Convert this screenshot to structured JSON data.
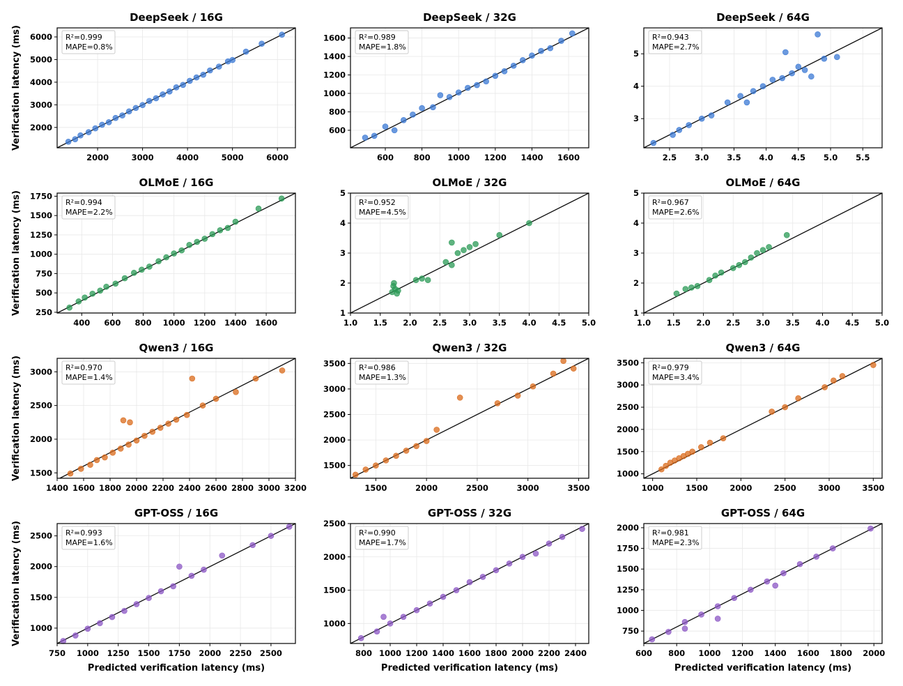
{
  "figure": {
    "xlabel": "Predicted verification latency (ms)",
    "ylabel": "Verification latency (ms)"
  },
  "colors": {
    "DeepSeek": "#3a78d4",
    "OLMoE": "#2a9a55",
    "Qwen3": "#d9691a",
    "GPT-OSS": "#8b55c4",
    "identity_line": "#111111"
  },
  "chart_data": [
    {
      "type": "scatter",
      "model": "DeepSeek",
      "title": "DeepSeek / 16G",
      "r2": "R²=0.999",
      "mape": "MAPE=0.8%",
      "xlim": [
        1100,
        6400
      ],
      "ylim": [
        1100,
        6400
      ],
      "xticks": [
        2000,
        3000,
        4000,
        5000,
        6000
      ],
      "yticks": [
        2000,
        3000,
        4000,
        5000,
        6000
      ],
      "points": [
        [
          1350,
          1370
        ],
        [
          1500,
          1480
        ],
        [
          1620,
          1650
        ],
        [
          1800,
          1790
        ],
        [
          1950,
          1960
        ],
        [
          2100,
          2120
        ],
        [
          2250,
          2230
        ],
        [
          2400,
          2420
        ],
        [
          2550,
          2530
        ],
        [
          2700,
          2710
        ],
        [
          2850,
          2860
        ],
        [
          3000,
          2990
        ],
        [
          3150,
          3170
        ],
        [
          3300,
          3290
        ],
        [
          3450,
          3460
        ],
        [
          3600,
          3590
        ],
        [
          3750,
          3770
        ],
        [
          3900,
          3880
        ],
        [
          4050,
          4060
        ],
        [
          4200,
          4210
        ],
        [
          4350,
          4330
        ],
        [
          4500,
          4520
        ],
        [
          4700,
          4690
        ],
        [
          4900,
          4920
        ],
        [
          5000,
          4980
        ],
        [
          5300,
          5350
        ],
        [
          5650,
          5700
        ],
        [
          6100,
          6100
        ]
      ]
    },
    {
      "type": "scatter",
      "model": "DeepSeek",
      "title": "DeepSeek / 32G",
      "r2": "R²=0.989",
      "mape": "MAPE=1.8%",
      "xlim": [
        410,
        1710
      ],
      "ylim": [
        410,
        1710
      ],
      "xticks": [
        600,
        800,
        1000,
        1200,
        1400,
        1600
      ],
      "yticks": [
        600,
        800,
        1000,
        1200,
        1400,
        1600
      ],
      "points": [
        [
          490,
          520
        ],
        [
          540,
          540
        ],
        [
          600,
          640
        ],
        [
          650,
          600
        ],
        [
          700,
          710
        ],
        [
          750,
          770
        ],
        [
          800,
          840
        ],
        [
          860,
          850
        ],
        [
          900,
          980
        ],
        [
          950,
          960
        ],
        [
          1000,
          1010
        ],
        [
          1050,
          1060
        ],
        [
          1100,
          1090
        ],
        [
          1150,
          1130
        ],
        [
          1200,
          1190
        ],
        [
          1250,
          1240
        ],
        [
          1300,
          1300
        ],
        [
          1350,
          1360
        ],
        [
          1400,
          1410
        ],
        [
          1450,
          1460
        ],
        [
          1500,
          1490
        ],
        [
          1560,
          1570
        ],
        [
          1620,
          1650
        ]
      ]
    },
    {
      "type": "scatter",
      "model": "DeepSeek",
      "title": "DeepSeek / 64G",
      "r2": "R²=0.943",
      "mape": "MAPE=2.7%",
      "xlim": [
        2.1,
        5.8
      ],
      "ylim": [
        2.1,
        5.8
      ],
      "xticks": [
        2.5,
        3.0,
        3.5,
        4.0,
        4.5,
        5.0,
        5.5
      ],
      "yticks": [
        3,
        4,
        5
      ],
      "points": [
        [
          2.25,
          2.25
        ],
        [
          2.55,
          2.5
        ],
        [
          2.65,
          2.65
        ],
        [
          2.8,
          2.8
        ],
        [
          3.0,
          3.0
        ],
        [
          3.15,
          3.1
        ],
        [
          3.4,
          3.5
        ],
        [
          3.6,
          3.7
        ],
        [
          3.8,
          3.85
        ],
        [
          3.95,
          4.0
        ],
        [
          4.1,
          4.2
        ],
        [
          4.25,
          4.25
        ],
        [
          4.4,
          4.4
        ],
        [
          4.5,
          4.6
        ],
        [
          4.6,
          4.5
        ],
        [
          4.7,
          4.3
        ],
        [
          4.8,
          5.6
        ],
        [
          4.9,
          4.85
        ],
        [
          5.1,
          4.9
        ],
        [
          4.3,
          5.05
        ],
        [
          3.7,
          3.5
        ]
      ]
    },
    {
      "type": "scatter",
      "model": "OLMoE",
      "title": "OLMoE / 16G",
      "r2": "R²=0.994",
      "mape": "MAPE=2.2%",
      "xlim": [
        240,
        1790
      ],
      "ylim": [
        240,
        1790
      ],
      "xticks": [
        400,
        600,
        800,
        1000,
        1200,
        1400,
        1600
      ],
      "yticks": [
        250,
        500,
        750,
        1000,
        1250,
        1500,
        1750
      ],
      "points": [
        [
          320,
          310
        ],
        [
          380,
          390
        ],
        [
          420,
          440
        ],
        [
          470,
          490
        ],
        [
          520,
          530
        ],
        [
          560,
          580
        ],
        [
          620,
          620
        ],
        [
          680,
          690
        ],
        [
          740,
          760
        ],
        [
          790,
          800
        ],
        [
          840,
          840
        ],
        [
          900,
          910
        ],
        [
          950,
          960
        ],
        [
          1000,
          1010
        ],
        [
          1050,
          1050
        ],
        [
          1100,
          1120
        ],
        [
          1150,
          1160
        ],
        [
          1200,
          1200
        ],
        [
          1250,
          1260
        ],
        [
          1300,
          1310
        ],
        [
          1350,
          1340
        ],
        [
          1400,
          1420
        ],
        [
          1550,
          1590
        ],
        [
          1700,
          1720
        ]
      ]
    },
    {
      "type": "scatter",
      "model": "OLMoE",
      "title": "OLMoE / 32G",
      "r2": "R²=0.952",
      "mape": "MAPE=4.5%",
      "xlim": [
        1.0,
        5.0
      ],
      "ylim": [
        1.0,
        5.0
      ],
      "xticks": [
        1.0,
        1.5,
        2.0,
        2.5,
        3.0,
        3.5,
        4.0,
        4.5,
        5.0
      ],
      "yticks": [
        1,
        2,
        3,
        4,
        5
      ],
      "points": [
        [
          1.7,
          1.7
        ],
        [
          1.72,
          1.9
        ],
        [
          1.75,
          1.8
        ],
        [
          1.78,
          1.65
        ],
        [
          1.73,
          2.0
        ],
        [
          1.8,
          1.75
        ],
        [
          2.1,
          2.1
        ],
        [
          2.2,
          2.15
        ],
        [
          2.3,
          2.1
        ],
        [
          2.6,
          2.7
        ],
        [
          2.7,
          2.6
        ],
        [
          2.8,
          3.0
        ],
        [
          2.9,
          3.1
        ],
        [
          3.0,
          3.2
        ],
        [
          3.1,
          3.3
        ],
        [
          2.7,
          3.35
        ],
        [
          3.5,
          3.6
        ],
        [
          4.0,
          4.0
        ]
      ]
    },
    {
      "type": "scatter",
      "model": "OLMoE",
      "title": "OLMoE / 64G",
      "r2": "R²=0.967",
      "mape": "MAPE=2.6%",
      "xlim": [
        1.0,
        5.0
      ],
      "ylim": [
        1.0,
        5.0
      ],
      "xticks": [
        1.0,
        1.5,
        2.0,
        2.5,
        3.0,
        3.5,
        4.0,
        4.5,
        5.0
      ],
      "yticks": [
        1,
        2,
        3,
        4,
        5
      ],
      "points": [
        [
          1.55,
          1.65
        ],
        [
          1.7,
          1.8
        ],
        [
          1.8,
          1.85
        ],
        [
          1.9,
          1.9
        ],
        [
          2.1,
          2.1
        ],
        [
          2.2,
          2.25
        ],
        [
          2.3,
          2.35
        ],
        [
          2.5,
          2.5
        ],
        [
          2.6,
          2.6
        ],
        [
          2.7,
          2.7
        ],
        [
          2.8,
          2.85
        ],
        [
          2.9,
          3.0
        ],
        [
          3.0,
          3.1
        ],
        [
          3.1,
          3.2
        ],
        [
          3.4,
          3.6
        ]
      ]
    },
    {
      "type": "scatter",
      "model": "Qwen3",
      "title": "Qwen3 / 16G",
      "r2": "R²=0.970",
      "mape": "MAPE=1.4%",
      "xlim": [
        1400,
        3200
      ],
      "ylim": [
        1420,
        3200
      ],
      "xticks": [
        1400,
        1600,
        1800,
        2000,
        2200,
        2400,
        2600,
        2800,
        3000,
        3200
      ],
      "yticks": [
        1500,
        2000,
        2500,
        3000
      ],
      "points": [
        [
          1500,
          1490
        ],
        [
          1580,
          1560
        ],
        [
          1650,
          1620
        ],
        [
          1700,
          1690
        ],
        [
          1760,
          1730
        ],
        [
          1820,
          1800
        ],
        [
          1880,
          1860
        ],
        [
          1940,
          1920
        ],
        [
          2000,
          1980
        ],
        [
          2060,
          2050
        ],
        [
          2120,
          2110
        ],
        [
          2180,
          2170
        ],
        [
          2240,
          2230
        ],
        [
          2300,
          2290
        ],
        [
          2380,
          2360
        ],
        [
          2420,
          2900
        ],
        [
          2500,
          2500
        ],
        [
          2600,
          2600
        ],
        [
          2750,
          2700
        ],
        [
          2900,
          2900
        ],
        [
          3100,
          3020
        ],
        [
          1900,
          2280
        ],
        [
          1950,
          2250
        ]
      ]
    },
    {
      "type": "scatter",
      "model": "Qwen3",
      "title": "Qwen3 / 32G",
      "r2": "R²=0.986",
      "mape": "MAPE=1.3%",
      "xlim": [
        1250,
        3600
      ],
      "ylim": [
        1250,
        3600
      ],
      "xticks": [
        1500,
        2000,
        2500,
        3000,
        3500
      ],
      "yticks": [
        1500,
        2000,
        2500,
        3000,
        3500
      ],
      "points": [
        [
          1300,
          1320
        ],
        [
          1400,
          1420
        ],
        [
          1500,
          1500
        ],
        [
          1600,
          1600
        ],
        [
          1700,
          1690
        ],
        [
          1800,
          1790
        ],
        [
          1900,
          1880
        ],
        [
          2000,
          1980
        ],
        [
          2100,
          2200
        ],
        [
          2330,
          2830
        ],
        [
          2700,
          2720
        ],
        [
          2900,
          2870
        ],
        [
          3050,
          3050
        ],
        [
          3250,
          3300
        ],
        [
          3450,
          3400
        ],
        [
          3350,
          3550
        ]
      ]
    },
    {
      "type": "scatter",
      "model": "Qwen3",
      "title": "Qwen3 / 64G",
      "r2": "R²=0.979",
      "mape": "MAPE=3.4%",
      "xlim": [
        900,
        3600
      ],
      "ylim": [
        900,
        3600
      ],
      "xticks": [
        1000,
        1500,
        2000,
        2500,
        3000,
        3500
      ],
      "yticks": [
        1000,
        1500,
        2000,
        2500,
        3000,
        3500
      ],
      "points": [
        [
          1100,
          1100
        ],
        [
          1150,
          1180
        ],
        [
          1200,
          1250
        ],
        [
          1250,
          1300
        ],
        [
          1300,
          1350
        ],
        [
          1350,
          1400
        ],
        [
          1400,
          1450
        ],
        [
          1450,
          1500
        ],
        [
          1550,
          1600
        ],
        [
          1650,
          1700
        ],
        [
          1800,
          1800
        ],
        [
          2350,
          2400
        ],
        [
          2500,
          2500
        ],
        [
          2650,
          2700
        ],
        [
          2950,
          2950
        ],
        [
          3050,
          3100
        ],
        [
          3150,
          3200
        ],
        [
          3500,
          3450
        ]
      ]
    },
    {
      "type": "scatter",
      "model": "GPT-OSS",
      "title": "GPT-OSS / 16G",
      "r2": "R²=0.993",
      "mape": "MAPE=1.6%",
      "xlim": [
        750,
        2700
      ],
      "ylim": [
        750,
        2700
      ],
      "xticks": [
        750,
        1000,
        1250,
        1500,
        1750,
        2000,
        2250,
        2500
      ],
      "yticks": [
        1000,
        1500,
        2000,
        2500
      ],
      "points": [
        [
          800,
          790
        ],
        [
          900,
          880
        ],
        [
          1000,
          990
        ],
        [
          1100,
          1080
        ],
        [
          1200,
          1180
        ],
        [
          1300,
          1280
        ],
        [
          1400,
          1390
        ],
        [
          1500,
          1490
        ],
        [
          1600,
          1600
        ],
        [
          1700,
          1680
        ],
        [
          1750,
          2000
        ],
        [
          1850,
          1850
        ],
        [
          1950,
          1950
        ],
        [
          2100,
          2180
        ],
        [
          2350,
          2350
        ],
        [
          2500,
          2500
        ],
        [
          2650,
          2650
        ]
      ]
    },
    {
      "type": "scatter",
      "model": "GPT-OSS",
      "title": "GPT-OSS / 32G",
      "r2": "R²=0.990",
      "mape": "MAPE=1.7%",
      "xlim": [
        700,
        2500
      ],
      "ylim": [
        700,
        2500
      ],
      "xticks": [
        800,
        1000,
        1200,
        1400,
        1600,
        1800,
        2000,
        2200,
        2400
      ],
      "yticks": [
        1000,
        1500,
        2000,
        2500
      ],
      "points": [
        [
          780,
          780
        ],
        [
          900,
          880
        ],
        [
          1000,
          1000
        ],
        [
          1100,
          1100
        ],
        [
          1200,
          1200
        ],
        [
          1300,
          1300
        ],
        [
          1400,
          1400
        ],
        [
          1500,
          1500
        ],
        [
          1600,
          1620
        ],
        [
          1700,
          1700
        ],
        [
          1800,
          1800
        ],
        [
          1900,
          1900
        ],
        [
          2000,
          2000
        ],
        [
          2100,
          2050
        ],
        [
          2200,
          2200
        ],
        [
          2300,
          2300
        ],
        [
          2450,
          2420
        ],
        [
          950,
          1100
        ]
      ]
    },
    {
      "type": "scatter",
      "model": "GPT-OSS",
      "title": "GPT-OSS / 64G",
      "r2": "R²=0.981",
      "mape": "MAPE=2.3%",
      "xlim": [
        600,
        2050
      ],
      "ylim": [
        600,
        2050
      ],
      "xticks": [
        600,
        800,
        1000,
        1200,
        1400,
        1600,
        1800,
        2000
      ],
      "yticks": [
        750,
        1000,
        1250,
        1500,
        1750,
        2000
      ],
      "points": [
        [
          650,
          650
        ],
        [
          750,
          740
        ],
        [
          850,
          860
        ],
        [
          950,
          950
        ],
        [
          1050,
          1050
        ],
        [
          1150,
          1150
        ],
        [
          1250,
          1250
        ],
        [
          1350,
          1350
        ],
        [
          1450,
          1450
        ],
        [
          1550,
          1560
        ],
        [
          1650,
          1650
        ],
        [
          1750,
          1750
        ],
        [
          1980,
          1990
        ],
        [
          850,
          780
        ],
        [
          1050,
          900
        ],
        [
          1400,
          1300
        ]
      ]
    }
  ]
}
